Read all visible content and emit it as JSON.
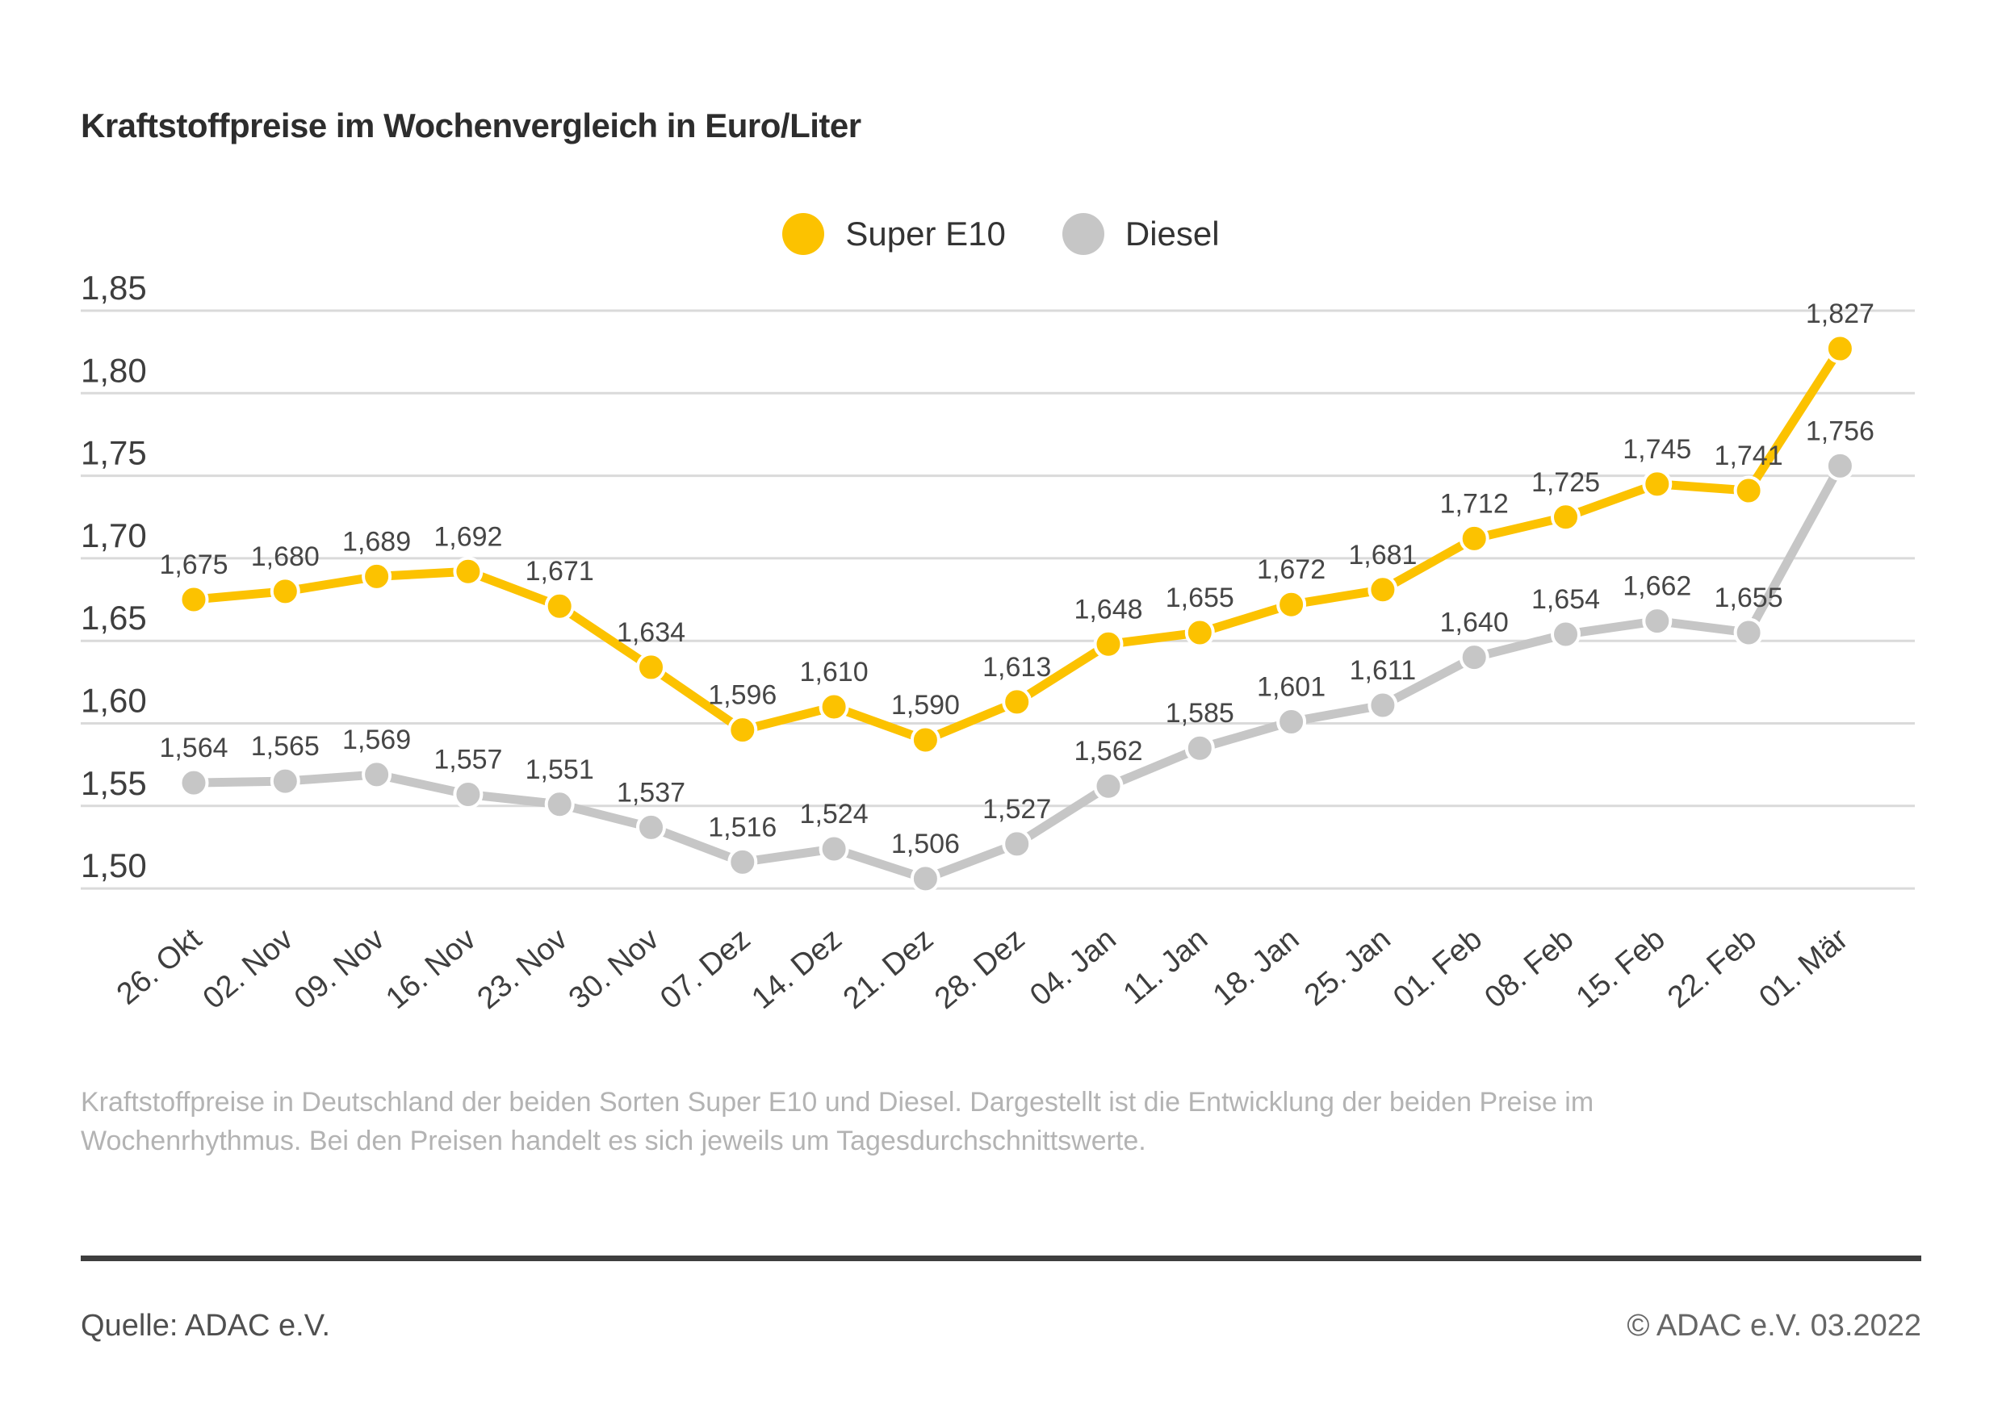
{
  "title": "Kraftstoffpreise im Wochenvergleich in Euro/Liter",
  "legend": [
    {
      "label": "Super E10",
      "color": "#FCC200"
    },
    {
      "label": "Diesel",
      "color": "#C6C6C6"
    }
  ],
  "chart_data": {
    "type": "line",
    "title": "Kraftstoffpreise im Wochenvergleich in Euro/Liter",
    "categories": [
      "26. Okt",
      "02. Nov",
      "09. Nov",
      "16. Nov",
      "23. Nov",
      "30. Nov",
      "07. Dez",
      "14. Dez",
      "21. Dez",
      "28. Dez",
      "04. Jan",
      "11. Jan",
      "18. Jan",
      "25. Jan",
      "01. Feb",
      "08. Feb",
      "15. Feb",
      "22. Feb",
      "01. Mär"
    ],
    "series": [
      {
        "name": "Super E10",
        "color": "#FCC200",
        "values": [
          1.675,
          1.68,
          1.689,
          1.692,
          1.671,
          1.634,
          1.596,
          1.61,
          1.59,
          1.613,
          1.648,
          1.655,
          1.672,
          1.681,
          1.712,
          1.725,
          1.745,
          1.741,
          1.827
        ],
        "labels": [
          "1,675",
          "1,680",
          "1,689",
          "1,692",
          "1,671",
          "1,634",
          "1,596",
          "1,610",
          "1,590",
          "1,613",
          "1,648",
          "1,655",
          "1,672",
          "1,681",
          "1,712",
          "1,725",
          "1,745",
          "1,741",
          "1,827"
        ]
      },
      {
        "name": "Diesel",
        "color": "#C6C6C6",
        "values": [
          1.564,
          1.565,
          1.569,
          1.557,
          1.551,
          1.537,
          1.516,
          1.524,
          1.506,
          1.527,
          1.562,
          1.585,
          1.601,
          1.611,
          1.64,
          1.654,
          1.662,
          1.655,
          1.756
        ],
        "labels": [
          "1,564",
          "1,565",
          "1,569",
          "1,557",
          "1,551",
          "1,537",
          "1,516",
          "1,524",
          "1,506",
          "1,527",
          "1,562",
          "1,585",
          "1,601",
          "1,611",
          "1,640",
          "1,654",
          "1,662",
          "1,655",
          "1,756"
        ]
      }
    ],
    "xlabel": "",
    "ylabel": "Euro/Liter",
    "ylim": [
      1.5,
      1.85
    ],
    "ytick_values": [
      1.85,
      1.8,
      1.75,
      1.7,
      1.65,
      1.6,
      1.55,
      1.5
    ],
    "ytick_labels": [
      "1,85",
      "1,80",
      "1,75",
      "1,70",
      "1,65",
      "1,60",
      "1,55",
      "1,50"
    ],
    "grid": true,
    "legend_position": "top-center"
  },
  "description_lines": [
    "Kraftstoffpreise in Deutschland der beiden Sorten Super E10 und Diesel. Dargestellt ist die Entwicklung der beiden Preise im",
    "Wochenrhythmus. Bei den Preisen handelt es sich jeweils um Tagesdurchschnittswerte."
  ],
  "source_left": "Quelle: ADAC e.V.",
  "source_right": "© ADAC e.V. 03.2022"
}
